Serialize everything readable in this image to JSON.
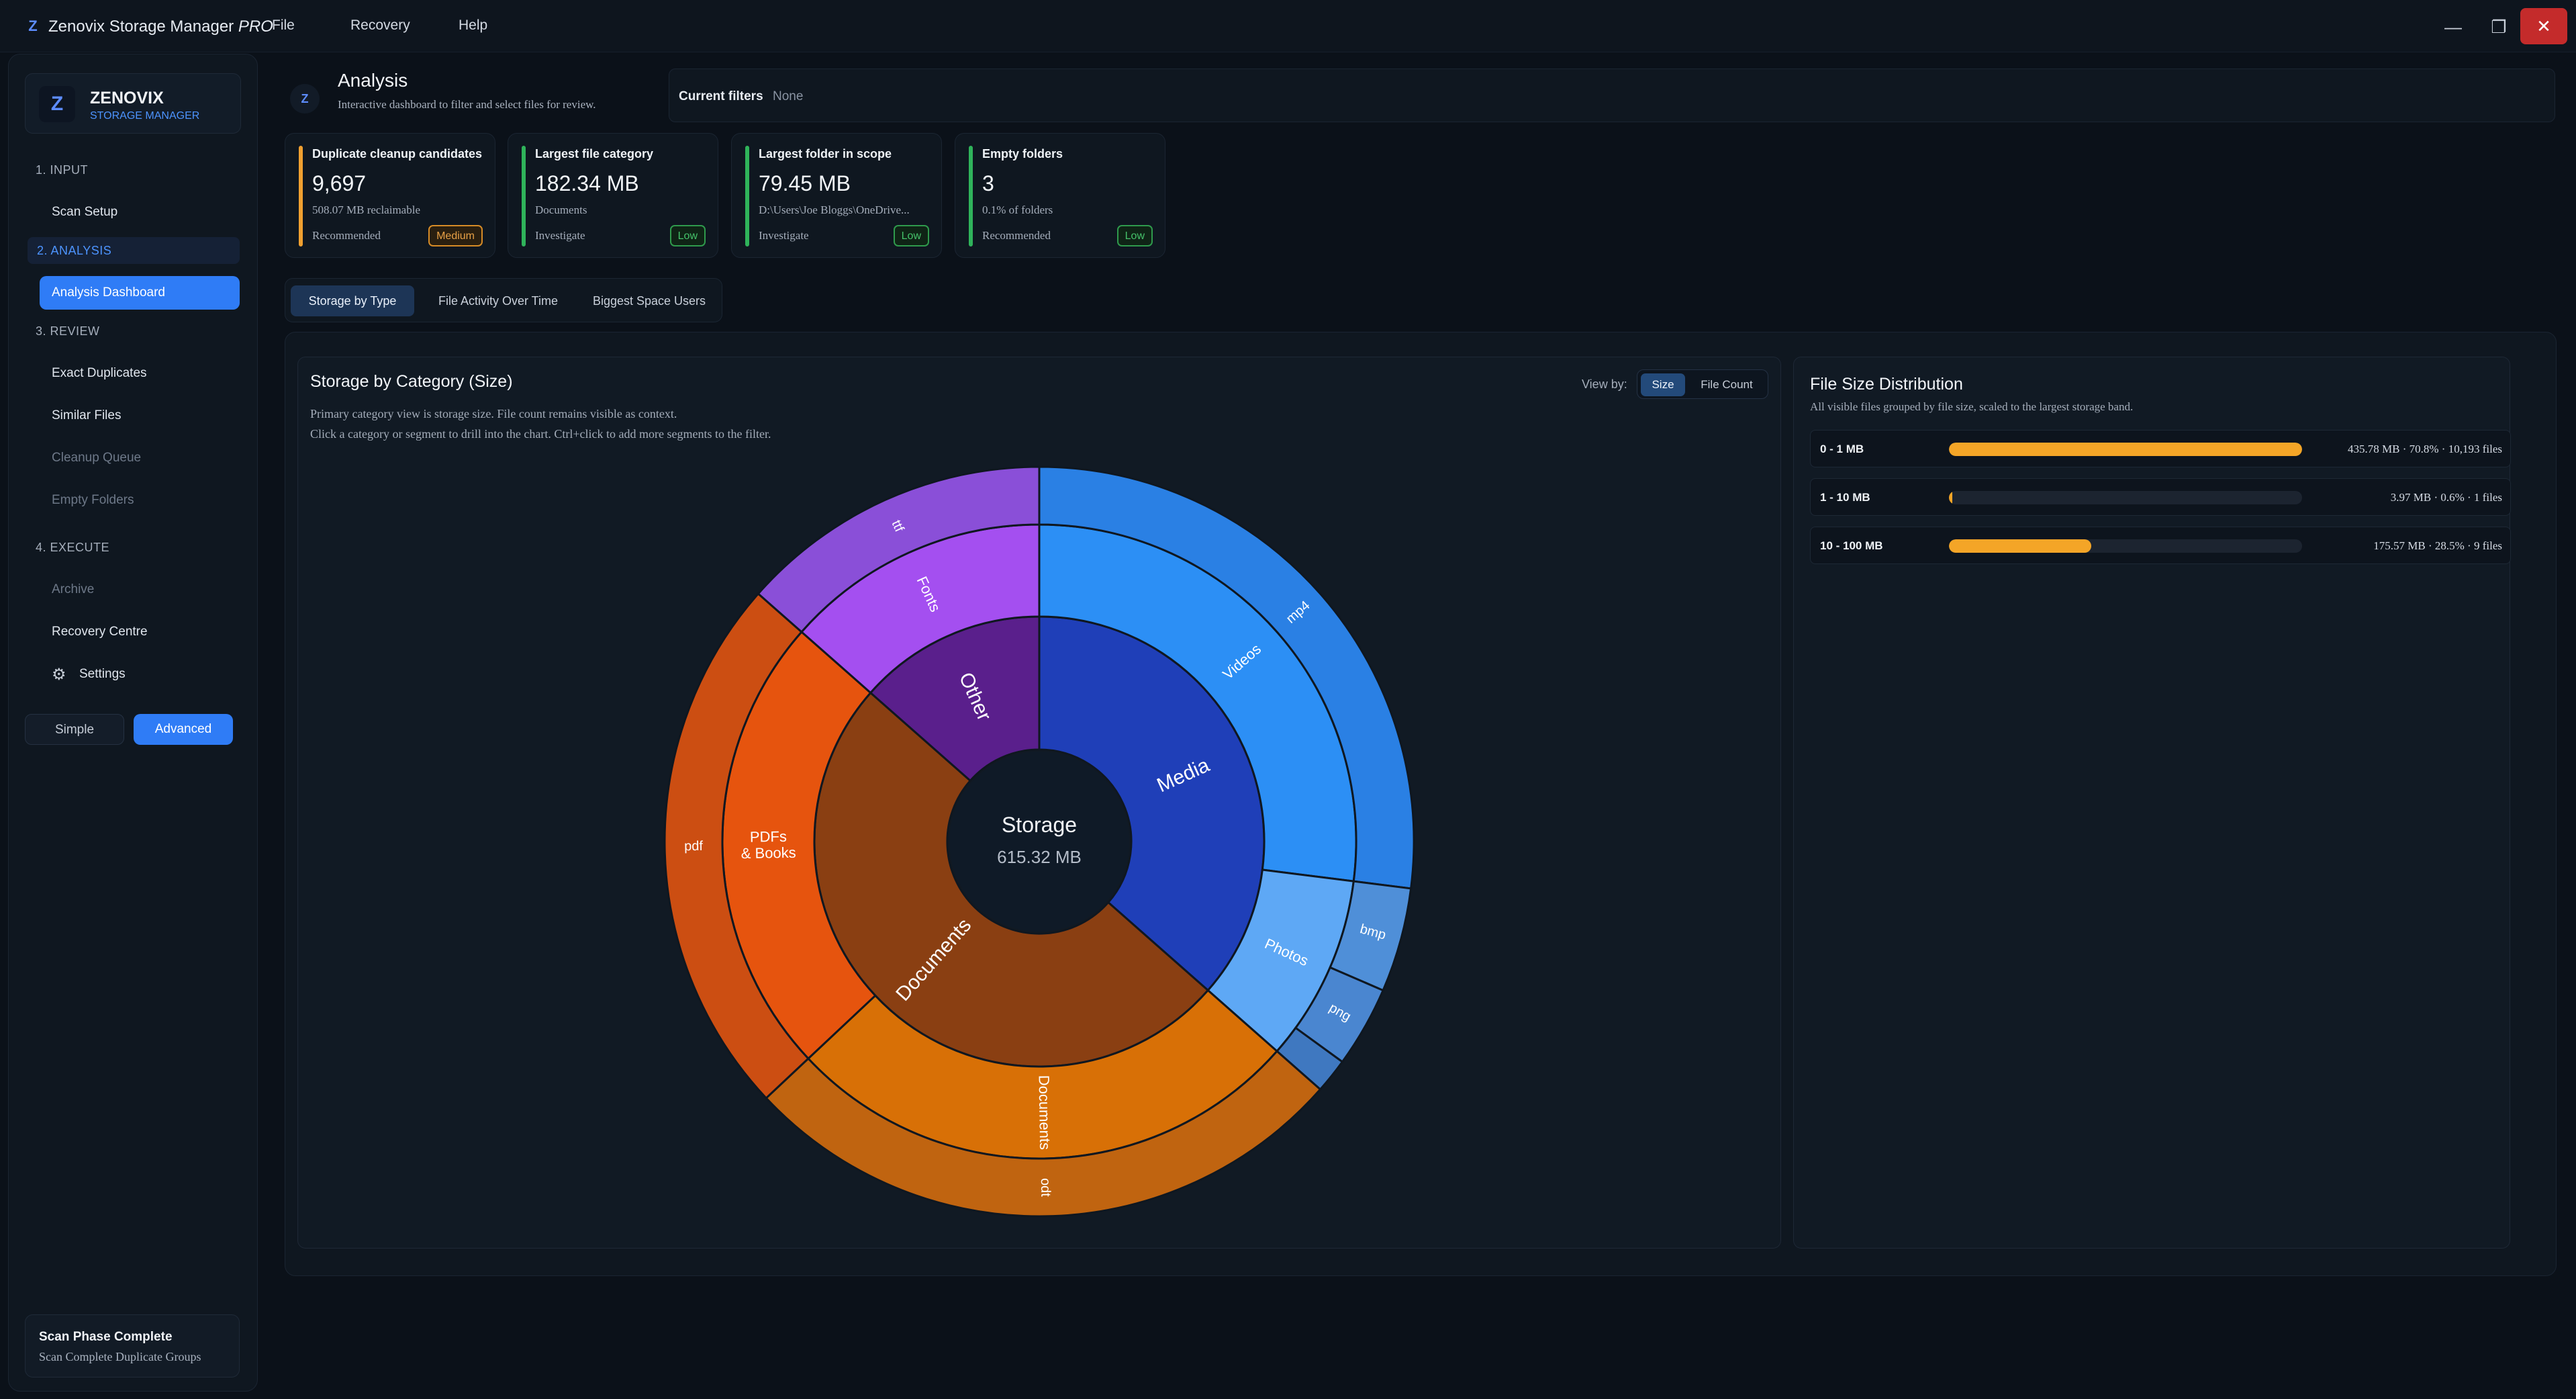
{
  "window": {
    "logo": "Z",
    "title": "Zenovix Storage Manager",
    "title_suffix": "PRO",
    "menu": [
      "File",
      "Recovery",
      "Help"
    ],
    "controls": {
      "minimize": "—",
      "restore": "❐",
      "close": "✕"
    }
  },
  "sidebar": {
    "brand_logo": "Z",
    "brand_name": "ZENOVIX",
    "brand_sub": "STORAGE MANAGER",
    "sections": {
      "input": "1. INPUT",
      "analysis": "2. ANALYSIS",
      "review": "3. REVIEW",
      "execute": "4. EXECUTE"
    },
    "items": {
      "scan_setup": "Scan Setup",
      "analysis_dashboard": "Analysis Dashboard",
      "exact_duplicates": "Exact Duplicates",
      "similar_files": "Similar Files",
      "cleanup_queue": "Cleanup Queue",
      "empty_folders": "Empty Folders",
      "archive": "Archive",
      "recovery_centre": "Recovery Centre",
      "settings": "Settings"
    },
    "mode": {
      "simple": "Simple",
      "advanced": "Advanced",
      "selected": "Advanced"
    },
    "status": {
      "title": "Scan Phase Complete",
      "subtitle": "Scan Complete Duplicate Groups"
    }
  },
  "header": {
    "logo": "Z",
    "title": "Analysis",
    "subtitle": "Interactive dashboard to filter and select files for review.",
    "filters_label": "Current filters",
    "filters_value": "None"
  },
  "kpis": [
    {
      "title": "Duplicate cleanup candidates",
      "value": "9,697",
      "sub": "508.07 MB reclaimable",
      "action": "Recommended",
      "badge": "Medium",
      "accent": "#f0a030"
    },
    {
      "title": "Largest file category",
      "value": "182.34 MB",
      "sub": "Documents",
      "action": "Investigate",
      "badge": "Low",
      "accent": "#2fb35a"
    },
    {
      "title": "Largest folder in scope",
      "value": "79.45 MB",
      "sub": "D:\\Users\\Joe Bloggs\\OneDrive...",
      "action": "Investigate",
      "badge": "Low",
      "accent": "#2fb35a"
    },
    {
      "title": "Empty folders",
      "value": "3",
      "sub": "0.1% of folders",
      "action": "Recommended",
      "badge": "Low",
      "accent": "#2fb35a"
    }
  ],
  "tabs": {
    "storage": "Storage by Type",
    "activity": "File Activity Over Time",
    "users": "Biggest Space Users",
    "selected": "Storage by Type"
  },
  "chart_panel": {
    "title": "Storage by Category (Size)",
    "desc1": "Primary category view is storage size. File count remains visible as context.",
    "desc2": "Click a category or segment to drill into the chart. Ctrl+click to add more segments to the filter.",
    "viewby_label": "View by:",
    "viewby_size": "Size",
    "viewby_count": "File Count",
    "viewby_selected": "Size"
  },
  "chart_data": {
    "type": "sunburst",
    "center_label": "Storage",
    "center_value": "615.32 MB",
    "rings": {
      "inner": [
        {
          "label": "Media",
          "fraction": 0.365,
          "color": "#1f3fb8"
        },
        {
          "label": "Documents",
          "fraction": 0.5,
          "color": "#8a3f12"
        },
        {
          "label": "Other",
          "fraction": 0.135,
          "color": "#5a1f8c"
        }
      ],
      "middle": [
        {
          "label": "Videos",
          "fraction": 0.27,
          "color": "#2c8ff5"
        },
        {
          "label": "Photos",
          "fraction": 0.095,
          "color": "#5ea8f5"
        },
        {
          "label": "Documents",
          "fraction": 0.265,
          "color": "#d87006"
        },
        {
          "label": "PDFs\n& Books",
          "fraction": 0.235,
          "color": "#e6540e"
        },
        {
          "label": "Fonts",
          "fraction": 0.135,
          "color": "#a44ff0"
        }
      ],
      "outer": [
        {
          "label": "mp4",
          "fraction": 0.27,
          "color": "#2a80e4"
        },
        {
          "label": "bmp",
          "fraction": 0.045,
          "color": "#4f8fd8"
        },
        {
          "label": "png",
          "fraction": 0.035,
          "color": "#4a86d0"
        },
        {
          "label": "",
          "fraction": 0.015,
          "color": "#3f78c0"
        },
        {
          "label": "odt",
          "fraction": 0.265,
          "color": "#c06410"
        },
        {
          "label": "pdf",
          "fraction": 0.235,
          "color": "#cc4e12"
        },
        {
          "label": "ttf",
          "fraction": 0.135,
          "color": "#8a4fd8"
        }
      ]
    }
  },
  "distribution": {
    "title": "File Size Distribution",
    "subtitle": "All visible files grouped by file size, scaled to the largest storage band.",
    "rows": [
      {
        "label": "0 - 1 MB",
        "value": "435.78 MB · 70.8% · 10,193 files",
        "fill": 1.0
      },
      {
        "label": "1 - 10 MB",
        "value": "3.97 MB · 0.6% · 1 files",
        "fill": 0.009
      },
      {
        "label": "10 - 100 MB",
        "value": "175.57 MB · 28.5% · 9 files",
        "fill": 0.403
      }
    ]
  }
}
